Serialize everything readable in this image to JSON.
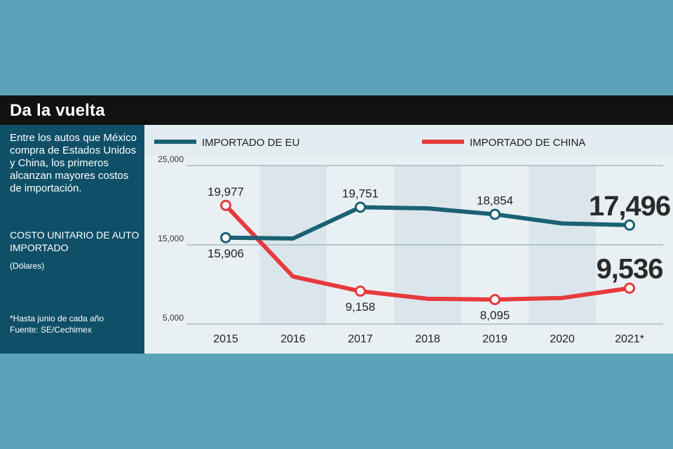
{
  "header": {
    "title": "Da la vuelta"
  },
  "sidebar": {
    "description": "Entre los autos que México compra de Estados Unidos y China, los primeros alcanzan mayores costos de importación.",
    "unit_title": "COSTO UNITARIO DE AUTO IMPORTADO",
    "unit_sub": "(Dólares)",
    "footnote": "*Hasta junio de cada año",
    "source": "Fuente: SE/Cechimex"
  },
  "colors": {
    "eu": "#1b6173",
    "china": "#e63a3c",
    "band_dark": "#dbe6ec",
    "band_light": "#e9f0f3",
    "sidebar": "#0f5068"
  },
  "chart_data": {
    "type": "line",
    "title": "",
    "xlabel": "",
    "ylabel": "",
    "categories": [
      "2015",
      "2016",
      "2017",
      "2018",
      "2019",
      "2020",
      "2021*"
    ],
    "ylim": [
      5000,
      25000
    ],
    "yticks": [
      5000,
      15000,
      25000
    ],
    "ytick_labels": [
      "5,000",
      "15,000",
      "25,000"
    ],
    "grid": "horizontal at ticks",
    "legend_position": "top",
    "series": [
      {
        "name": "IMPORTADO DE EU",
        "color": "#1b6173",
        "values": [
          15906,
          15800,
          19751,
          19600,
          18854,
          17700,
          17496
        ],
        "labeled": [
          {
            "index": 0,
            "label": "15,906",
            "pos": "below",
            "big": false
          },
          {
            "index": 2,
            "label": "19,751",
            "pos": "above",
            "big": false
          },
          {
            "index": 4,
            "label": "18,854",
            "pos": "above",
            "big": false
          },
          {
            "index": 6,
            "label": "17,496",
            "pos": "above",
            "big": true
          }
        ]
      },
      {
        "name": "IMPORTADO DE CHINA",
        "color": "#e63a3c",
        "values": [
          19977,
          11000,
          9158,
          8200,
          8095,
          8300,
          9536
        ],
        "labeled": [
          {
            "index": 0,
            "label": "19,977",
            "pos": "above",
            "big": false
          },
          {
            "index": 2,
            "label": "9,158",
            "pos": "below",
            "big": false
          },
          {
            "index": 4,
            "label": "8,095",
            "pos": "below",
            "big": false
          },
          {
            "index": 6,
            "label": "9,536",
            "pos": "above",
            "big": true
          }
        ]
      }
    ]
  }
}
